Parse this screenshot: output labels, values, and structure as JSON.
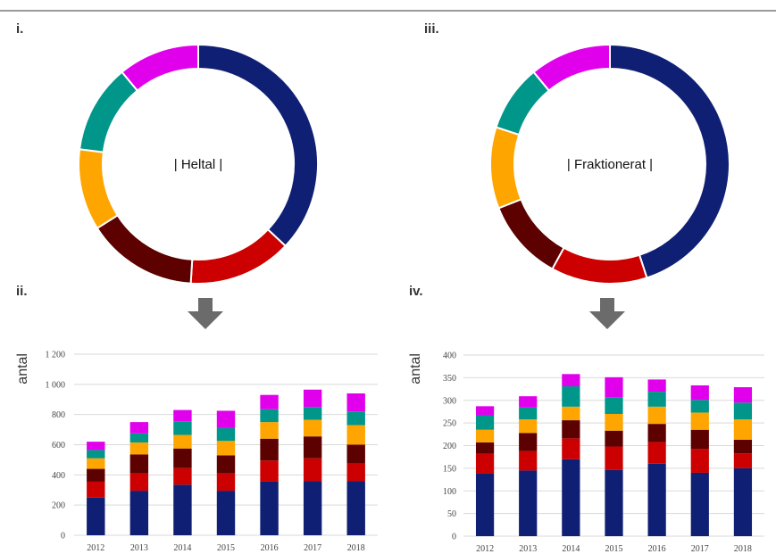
{
  "panels": {
    "i": "i.",
    "ii": "ii.",
    "iii": "iii.",
    "iv": "iv."
  },
  "colors": [
    "#0f1f73",
    "#cc0000",
    "#5c0000",
    "#ffa500",
    "#00968a",
    "#e100ec"
  ],
  "chart_data": [
    {
      "type": "pie",
      "variant": "donut",
      "center_label": "| Heltal |",
      "values": [
        37,
        14,
        15,
        11,
        12,
        11
      ]
    },
    {
      "type": "pie",
      "variant": "donut",
      "center_label": "| Fraktionerat |",
      "values": [
        45,
        13,
        11,
        11,
        9,
        11
      ]
    },
    {
      "type": "bar",
      "stacked": true,
      "categories": [
        "2012",
        "2013",
        "2014",
        "2015",
        "2016",
        "2017",
        "2018"
      ],
      "ylabel": "antal",
      "ylim": [
        0,
        1200
      ],
      "yticks": [
        "0",
        "200",
        "400",
        "600",
        "800",
        "1 000",
        "1 200"
      ],
      "grid": true,
      "series": [
        {
          "values": [
            250,
            295,
            335,
            295,
            355,
            360,
            360
          ]
        },
        {
          "values": [
            105,
            115,
            110,
            115,
            140,
            150,
            115
          ]
        },
        {
          "values": [
            85,
            125,
            130,
            120,
            145,
            145,
            125
          ]
        },
        {
          "values": [
            70,
            80,
            90,
            95,
            110,
            110,
            130
          ]
        },
        {
          "values": [
            55,
            60,
            90,
            85,
            85,
            85,
            90
          ]
        },
        {
          "values": [
            55,
            75,
            75,
            115,
            95,
            115,
            120
          ]
        }
      ]
    },
    {
      "type": "bar",
      "stacked": true,
      "categories": [
        "2012",
        "2013",
        "2014",
        "2015",
        "2016",
        "2017",
        "2018"
      ],
      "ylabel": "antal",
      "ylim": [
        0,
        400
      ],
      "yticks": [
        "0",
        "50",
        "100",
        "150",
        "200",
        "250",
        "300",
        "350",
        "400"
      ],
      "grid": true,
      "series": [
        {
          "values": [
            138,
            145,
            170,
            146,
            160,
            140,
            150
          ]
        },
        {
          "values": [
            44,
            43,
            46,
            52,
            48,
            53,
            33
          ]
        },
        {
          "values": [
            25,
            40,
            40,
            35,
            40,
            42,
            30
          ]
        },
        {
          "values": [
            28,
            30,
            30,
            37,
            38,
            38,
            45
          ]
        },
        {
          "values": [
            32,
            26,
            45,
            37,
            33,
            28,
            37
          ]
        },
        {
          "values": [
            20,
            25,
            27,
            44,
            27,
            32,
            34
          ]
        }
      ]
    }
  ]
}
